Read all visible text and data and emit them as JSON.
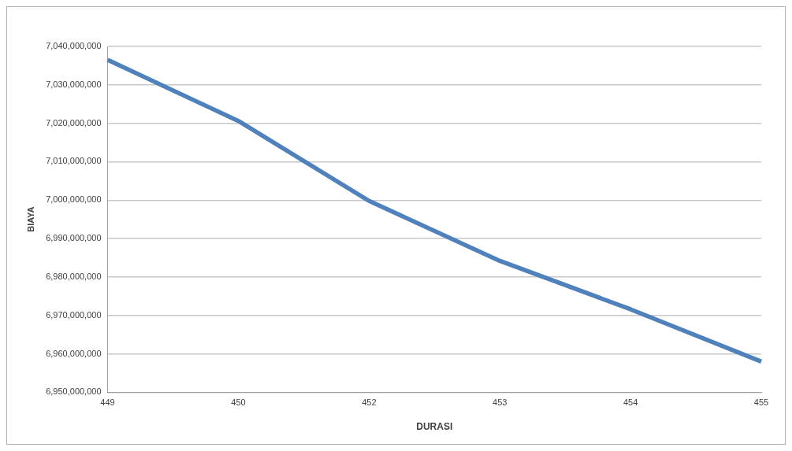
{
  "chart_data": {
    "type": "line",
    "xlabel": "DURASI",
    "ylabel": "BIAYA",
    "categories": [
      "449",
      "450",
      "452",
      "453",
      "454",
      "455"
    ],
    "series": [
      {
        "color": "#4f81bd",
        "values": [
          7036500000,
          7020600000,
          6999800000,
          6984200000,
          6971600000,
          6958000000
        ]
      }
    ],
    "ylim": [
      6950000000,
      7040000000
    ],
    "yticks": [
      {
        "value": 6950000000,
        "label": "6,950,000,000"
      },
      {
        "value": 6960000000,
        "label": "6,960,000,000"
      },
      {
        "value": 6970000000,
        "label": "6,970,000,000"
      },
      {
        "value": 6980000000,
        "label": "6,980,000,000"
      },
      {
        "value": 6990000000,
        "label": "6,990,000,000"
      },
      {
        "value": 7000000000,
        "label": "7,000,000,000"
      },
      {
        "value": 7010000000,
        "label": "7,010,000,000"
      },
      {
        "value": 7020000000,
        "label": "7,020,000,000"
      },
      {
        "value": 7030000000,
        "label": "7,030,000,000"
      },
      {
        "value": 7040000000,
        "label": "7,040,000,000"
      }
    ],
    "grid": "y",
    "legend": false,
    "marker": "none",
    "line_style": "solid"
  }
}
